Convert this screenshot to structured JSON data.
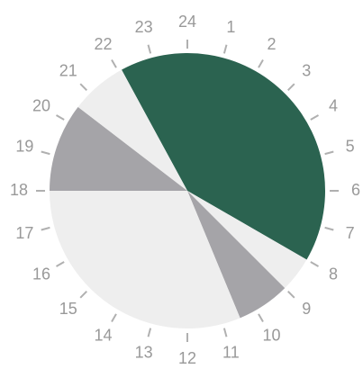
{
  "chart_data": {
    "type": "pie",
    "start": 22.1,
    "values": [
      9.9,
      1,
      1.5,
      7.5,
      2.5,
      1.6
    ],
    "colors": [
      "#2b6350",
      "#eeeeee",
      "#a5a4a8",
      "#eeeeee",
      "#a5a4a8",
      "#eeeeee"
    ],
    "tlim": [
      0,
      24
    ],
    "ticks": [
      1,
      2,
      3,
      4,
      5,
      6,
      7,
      8,
      9,
      10,
      11,
      12,
      13,
      14,
      15,
      16,
      17,
      18,
      19,
      20,
      21,
      22,
      23,
      24
    ]
  }
}
